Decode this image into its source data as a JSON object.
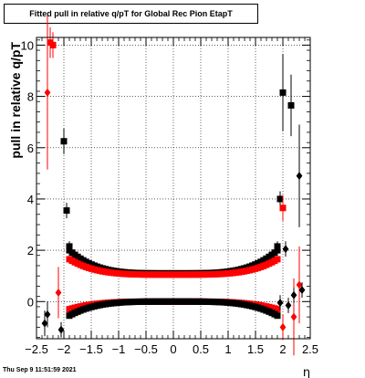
{
  "title": "Fitted pull in relative q/pT for Global Rec Pion EtapT",
  "footer": "Thu Sep  9 11:51:59 2021",
  "chart_data": {
    "type": "scatter",
    "title": "Fitted pull in relative q/pT for Global Rec Pion EtapT",
    "xlabel": "η",
    "ylabel": "pull in relative q/pT",
    "xlim": [
      -2.5,
      2.5
    ],
    "ylim": [
      -1.45,
      10.3
    ],
    "x_ticks": [
      -2.5,
      -2,
      -1.5,
      -1,
      -0.5,
      0,
      0.5,
      1,
      1.5,
      2,
      2.5
    ],
    "x_tick_labels": [
      "−2.5",
      "−2",
      "−1.5",
      "−1",
      "−0.5",
      "0",
      "0.5",
      "1",
      "1.5",
      "2",
      "2.5"
    ],
    "y_ticks": [
      0,
      2,
      4,
      6,
      8,
      10
    ],
    "y_tick_labels": [
      "0",
      "2",
      "4",
      "6",
      "8",
      "10"
    ],
    "grid": true,
    "colors": {
      "black": "#000000",
      "red": "#ff0000"
    },
    "series": [
      {
        "marker": "square",
        "color": "#000000",
        "points": [
          {
            "x": -2.2,
            "y": 10.0,
            "err": 0.4
          },
          {
            "x": -2.0,
            "y": 6.25,
            "err": 0.5
          },
          {
            "x": -1.95,
            "y": 3.55,
            "err": 0.3
          },
          {
            "x": -1.9,
            "y": 2.15,
            "err": 0.2
          },
          {
            "x": 1.9,
            "y": 2.15,
            "err": 0.2
          },
          {
            "x": 1.95,
            "y": 4.0,
            "err": 0.3
          },
          {
            "x": 2.0,
            "y": 8.15,
            "err": 1.5
          },
          {
            "x": 2.15,
            "y": 7.65,
            "err": 1.2
          }
        ]
      },
      {
        "marker": "square",
        "color": "#ff0000",
        "points": [
          {
            "x": -2.25,
            "y": 10.1,
            "err": 0.6
          },
          {
            "x": -2.2,
            "y": 10.0,
            "err": 0.5
          },
          {
            "x": 2.0,
            "y": 3.65,
            "err": 0.5
          }
        ]
      },
      {
        "marker": "diamond",
        "color": "#ff0000",
        "points": [
          {
            "x": -2.3,
            "y": 8.15,
            "err": 3.0
          },
          {
            "x": -2.1,
            "y": 0.35,
            "err": 1.0
          },
          {
            "x": 2.0,
            "y": -1.0,
            "err": 0.5
          },
          {
            "x": 2.2,
            "y": -0.6,
            "err": 1.5
          },
          {
            "x": 2.3,
            "y": 0.65,
            "err": 1.5
          }
        ]
      },
      {
        "marker": "diamond",
        "color": "#000000",
        "points": [
          {
            "x": -2.35,
            "y": -0.85,
            "err": 0.5
          },
          {
            "x": -2.3,
            "y": -0.5,
            "err": 0.5
          },
          {
            "x": -2.05,
            "y": -1.1,
            "err": 0.3
          },
          {
            "x": 1.95,
            "y": -0.05,
            "err": 0.3
          },
          {
            "x": 2.05,
            "y": 2.05,
            "err": 0.3
          },
          {
            "x": 2.1,
            "y": -0.15,
            "err": 0.3
          },
          {
            "x": 2.2,
            "y": 0.25,
            "err": 0.3
          },
          {
            "x": 2.3,
            "y": 4.9,
            "err": 2.0
          },
          {
            "x": 2.35,
            "y": 0.45,
            "err": 0.3
          }
        ]
      }
    ],
    "bands": [
      {
        "name_hint": "upper-black",
        "color": "#000000",
        "marker": "square",
        "x_range": [
          -1.9,
          1.9
        ],
        "center": 1.1,
        "edge": 2.0,
        "err": 0.05
      },
      {
        "name_hint": "upper-red",
        "color": "#ff0000",
        "marker": "square",
        "x_range": [
          -1.9,
          1.9
        ],
        "center": 1.05,
        "edge": 1.65,
        "err": 0.05
      },
      {
        "name_hint": "lower-red",
        "color": "#ff0000",
        "marker": "square",
        "x_range": [
          -1.9,
          1.9
        ],
        "center": 0.0,
        "edge": -0.3,
        "err": 0.05
      },
      {
        "name_hint": "lower-black",
        "color": "#000000",
        "marker": "square",
        "x_range": [
          -1.9,
          1.9
        ],
        "center": 0.0,
        "edge": -0.55,
        "err": 0.05
      }
    ]
  }
}
